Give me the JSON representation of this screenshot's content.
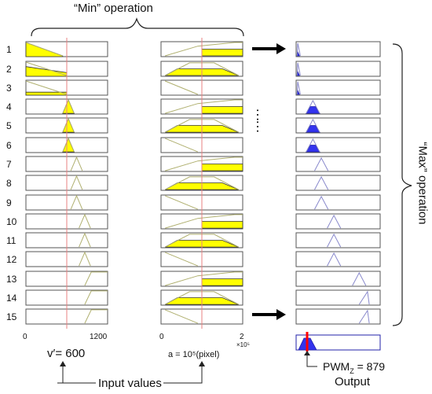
{
  "top_label": "“Min” operation",
  "side_label": "“Max” operation",
  "row_labels": [
    "1",
    "2",
    "3",
    "4",
    "5",
    "6",
    "7",
    "8",
    "9",
    "10",
    "11",
    "12",
    "13",
    "14",
    "15"
  ],
  "input1": {
    "axis_min": "0",
    "axis_max": "1200",
    "value_label": "v′= 600",
    "value": 600,
    "range": [
      0,
      1200
    ]
  },
  "input2": {
    "axis_min": "0",
    "axis_max": "2",
    "axis_exponent": "×10⁵",
    "value_label": "a = 10⁵(pixel)",
    "value": 1,
    "range": [
      0,
      2
    ]
  },
  "output": {
    "label": "PWM",
    "subscript": "Z",
    "value_text": " = 879",
    "caption": "Output"
  },
  "input_caption": "Input values",
  "dots": "……",
  "colors": {
    "fill_yellow": "#ffff00",
    "fill_blue": "#3333ee",
    "cursor_red": "#e88080",
    "output_red": "#ff0000",
    "mf_line": "#b0b070",
    "out_line": "#8888cc"
  }
}
